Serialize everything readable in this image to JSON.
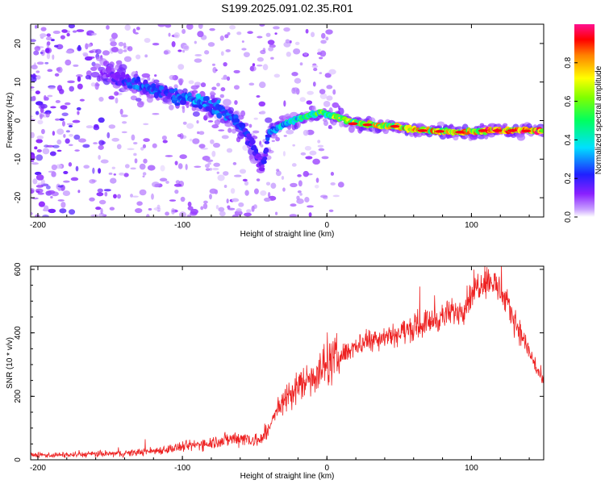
{
  "title": "S199.2025.091.02.35.R01",
  "chart_data": [
    {
      "type": "heatmap",
      "xlabel": "Height of straight line (km)",
      "ylabel": "Frequency (Hz)",
      "xlim": [
        -205,
        150
      ],
      "ylim": [
        -25,
        25
      ],
      "xticks": [
        -200,
        -100,
        0,
        100
      ],
      "yticks": [
        -20,
        -10,
        0,
        10,
        20
      ],
      "colorbar": {
        "label": "Normalized spectral amplitude",
        "range": [
          0,
          1
        ],
        "ticks": [
          0.0,
          0.2,
          0.4,
          0.6,
          0.8
        ],
        "colors": [
          "#ffffff",
          "#9b30ff",
          "#2020ff",
          "#00ffff",
          "#00ff00",
          "#ffff00",
          "#ff8000",
          "#ff0000",
          "#ff1090"
        ]
      },
      "ridge": [
        {
          "x": -150,
          "y": 11.5,
          "amplitude": 0.15
        },
        {
          "x": -130,
          "y": 9,
          "amplitude": 0.3
        },
        {
          "x": -110,
          "y": 7,
          "amplitude": 0.25
        },
        {
          "x": -95,
          "y": 5.5,
          "amplitude": 0.35
        },
        {
          "x": -80,
          "y": 4,
          "amplitude": 0.3
        },
        {
          "x": -70,
          "y": 2,
          "amplitude": 0.3
        },
        {
          "x": -60,
          "y": -1,
          "amplitude": 0.25
        },
        {
          "x": -52,
          "y": -6,
          "amplitude": 0.25
        },
        {
          "x": -45,
          "y": -12,
          "amplitude": 0.15
        },
        {
          "x": -40,
          "y": -3,
          "amplitude": 0.3
        },
        {
          "x": -30,
          "y": -1,
          "amplitude": 0.45
        },
        {
          "x": -20,
          "y": 0.5,
          "amplitude": 0.5
        },
        {
          "x": -5,
          "y": 2,
          "amplitude": 0.6
        },
        {
          "x": 10,
          "y": 0.5,
          "amplitude": 0.7
        },
        {
          "x": 25,
          "y": -1,
          "amplitude": 0.75
        },
        {
          "x": 45,
          "y": -1.5,
          "amplitude": 0.8
        },
        {
          "x": 65,
          "y": -2.5,
          "amplitude": 0.85
        },
        {
          "x": 90,
          "y": -3,
          "amplitude": 0.8
        },
        {
          "x": 120,
          "y": -2.5,
          "amplitude": 0.95
        },
        {
          "x": 150,
          "y": -2.5,
          "amplitude": 0.9
        }
      ]
    },
    {
      "type": "line",
      "xlabel": "Height of straight line (km)",
      "ylabel": "SNR (10 * v/v)",
      "xlim": [
        -205,
        150
      ],
      "ylim": [
        0,
        610
      ],
      "xticks": [
        -200,
        -100,
        0,
        100
      ],
      "yticks": [
        0,
        200,
        400,
        600
      ],
      "series": [
        {
          "color": "#ee2222",
          "x": [
            -205,
            -180,
            -160,
            -140,
            -120,
            -100,
            -80,
            -60,
            -45,
            -35,
            -28,
            -22,
            -15,
            -5,
            0,
            10,
            20,
            30,
            40,
            50,
            60,
            70,
            80,
            90,
            95,
            100,
            105,
            110,
            115,
            120,
            130,
            140,
            150
          ],
          "y": [
            15,
            15,
            18,
            20,
            28,
            40,
            55,
            70,
            60,
            150,
            200,
            220,
            250,
            280,
            300,
            330,
            360,
            380,
            390,
            400,
            415,
            435,
            450,
            470,
            480,
            520,
            555,
            570,
            560,
            530,
            440,
            340,
            240
          ]
        }
      ]
    }
  ]
}
